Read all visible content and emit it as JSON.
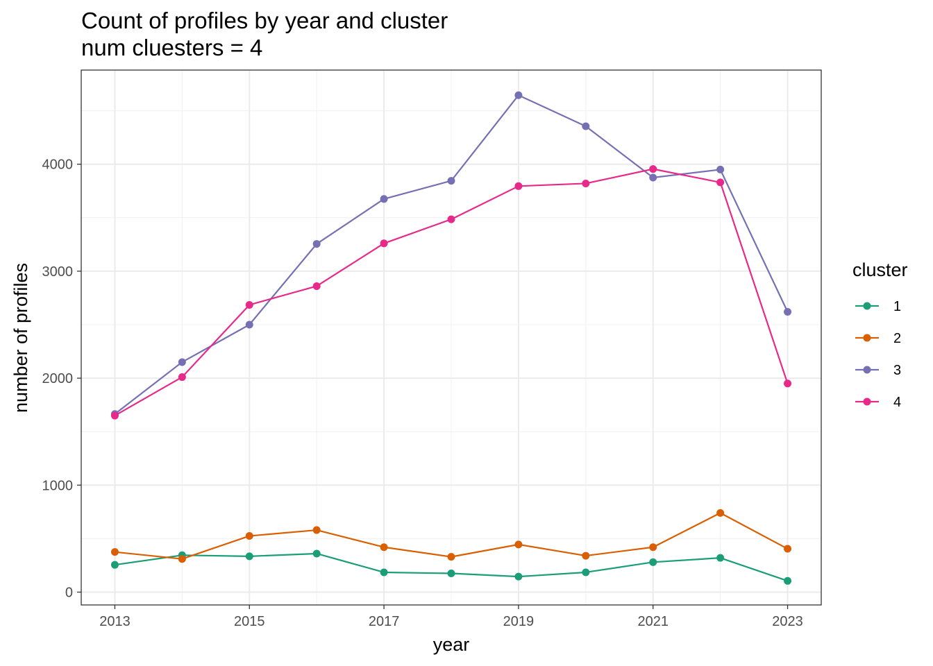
{
  "chart_data": {
    "type": "line",
    "title": "Count of profiles by year and cluster",
    "subtitle": "num cluesters = 4",
    "xlabel": "year",
    "ylabel": "number of profiles",
    "x": [
      2013,
      2014,
      2015,
      2016,
      2017,
      2018,
      2019,
      2020,
      2021,
      2022,
      2023
    ],
    "xticks": [
      2013,
      2015,
      2017,
      2019,
      2021,
      2023
    ],
    "xtick_labels": [
      "2013",
      "2015",
      "2017",
      "2019",
      "2021",
      "2023"
    ],
    "yticks": [
      0,
      1000,
      2000,
      3000,
      4000
    ],
    "ytick_labels": [
      "0",
      "1000",
      "2000",
      "3000",
      "4000"
    ],
    "xlim": [
      2012.5,
      2023.5
    ],
    "ylim": [
      -120,
      4880
    ],
    "grid": true,
    "legend": {
      "title": "cluster",
      "position": "right"
    },
    "series": [
      {
        "name": "1",
        "color": "#1B9E77",
        "values": [
          255,
          345,
          335,
          360,
          185,
          175,
          145,
          185,
          280,
          320,
          105
        ]
      },
      {
        "name": "2",
        "color": "#D95F02",
        "values": [
          375,
          310,
          525,
          580,
          420,
          330,
          445,
          340,
          420,
          740,
          405
        ]
      },
      {
        "name": "3",
        "color": "#7570B3",
        "values": [
          1665,
          2150,
          2500,
          3255,
          3675,
          3845,
          4645,
          4355,
          3875,
          3950,
          2620
        ]
      },
      {
        "name": "4",
        "color": "#E7298A",
        "values": [
          1650,
          2010,
          2685,
          2860,
          3260,
          3485,
          3795,
          3820,
          3955,
          3830,
          1950
        ]
      }
    ]
  }
}
